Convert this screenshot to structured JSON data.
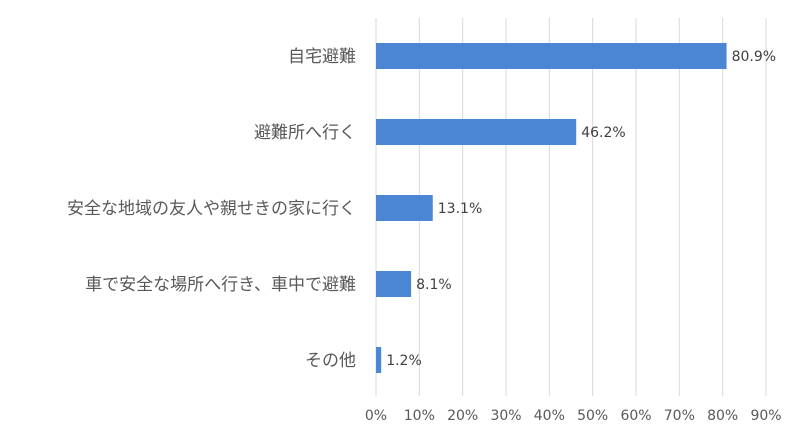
{
  "chart_data": {
    "type": "bar",
    "orientation": "horizontal",
    "categories": [
      "自宅避難",
      "避難所へ行く",
      "安全な地域の友人や親せきの家に行く",
      "車で安全な場所へ行き、車中で避難",
      "その他"
    ],
    "values": [
      80.9,
      46.2,
      13.1,
      8.1,
      1.2
    ],
    "data_labels": [
      "80.9%",
      "46.2%",
      "13.1%",
      "8.1%",
      "1.2%"
    ],
    "x_ticks": [
      "0%",
      "10%",
      "20%",
      "30%",
      "40%",
      "50%",
      "60%",
      "70%",
      "80%",
      "90%"
    ],
    "xlim": [
      0,
      90
    ],
    "grid": "vertical",
    "legend": "none",
    "bar_color": "#4a86d4",
    "title": "",
    "xlabel": "",
    "ylabel": ""
  }
}
